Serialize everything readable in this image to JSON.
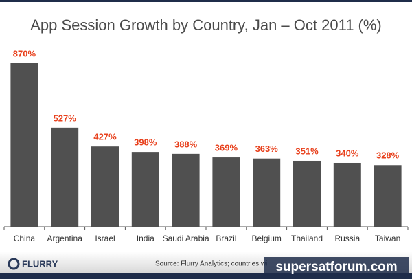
{
  "chart_data": {
    "type": "bar",
    "title": "App Session Growth by Country, Jan – Oct 2011 (%)",
    "categories": [
      "China",
      "Argentina",
      "Israel",
      "India",
      "Saudi Arabia",
      "Brazil",
      "Belgium",
      "Thailand",
      "Russia",
      "Taiwan"
    ],
    "values": [
      870,
      527,
      427,
      398,
      388,
      369,
      363,
      351,
      340,
      328
    ],
    "value_labels": [
      "870%",
      "527%",
      "427%",
      "398%",
      "388%",
      "369%",
      "363%",
      "351%",
      "340%",
      "328%"
    ],
    "color": "#505050",
    "label_color": "#e8401c"
  },
  "footer": {
    "logo": "FLURRY",
    "source": "Source: Flurry Analytics; countries wi",
    "watermark": "supersatforum.com"
  }
}
